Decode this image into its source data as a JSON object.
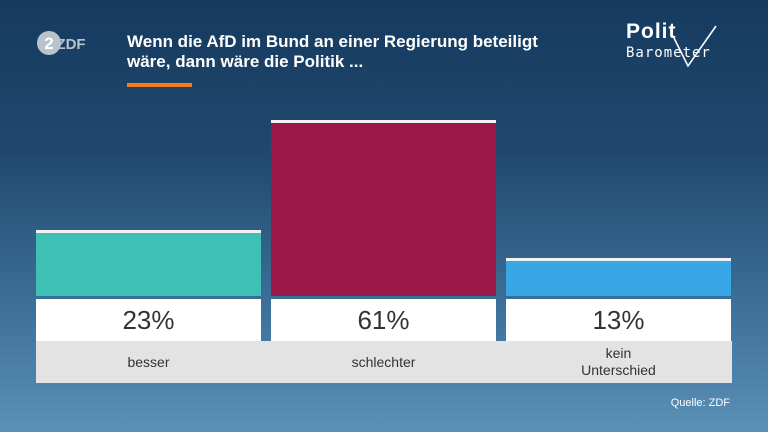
{
  "title": {
    "line1": "Wenn die AfD im Bund an einer Regierung beteiligt",
    "line2": "wäre, dann wäre die Politik ..."
  },
  "logo": {
    "text": "ZDF",
    "icon": "zdf-logo-icon"
  },
  "brand": {
    "word1": "Polit",
    "word2": "Barometer",
    "icon": "checkmark-icon"
  },
  "source": "Quelle: ZDF",
  "colors": {
    "accent": "#f07d23",
    "besser": "#3ec0b4",
    "schlechter": "#9a1848",
    "kein_unterschied": "#39a6e6"
  },
  "chart_data": {
    "type": "bar",
    "categories": [
      "besser",
      "schlechter",
      "kein\nUnterschied"
    ],
    "values": [
      23,
      61,
      13
    ],
    "value_labels": [
      "23%",
      "61%",
      "13%"
    ],
    "unit": "%",
    "colors": [
      "#3ec0b4",
      "#9a1848",
      "#39a6e6"
    ],
    "ylim": [
      0,
      61
    ],
    "title": "Wenn die AfD im Bund an einer Regierung beteiligt wäre, dann wäre die Politik ...",
    "xlabel": "",
    "ylabel": "",
    "grid": false
  }
}
